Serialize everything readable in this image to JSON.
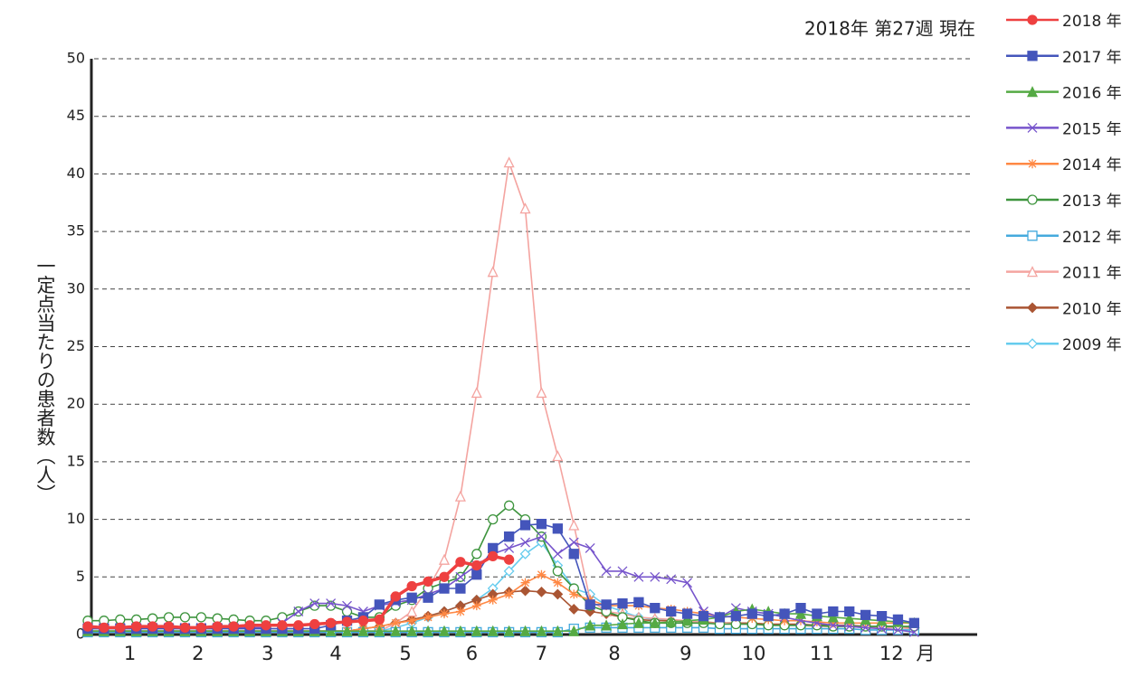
{
  "chart_data": {
    "type": "line",
    "title": "2018年 第27週 現在",
    "y_axis_label": "一定点当たりの患者数（人）",
    "x": [
      1,
      2,
      3,
      4,
      5,
      6,
      7,
      8,
      9,
      10,
      11,
      12,
      13,
      14,
      15,
      16,
      17,
      18,
      19,
      20,
      21,
      22,
      23,
      24,
      25,
      26,
      27,
      28,
      29,
      30,
      31,
      32,
      33,
      34,
      35,
      36,
      37,
      38,
      39,
      40,
      41,
      42,
      43,
      44,
      45,
      46,
      47,
      48,
      49,
      50,
      51,
      52
    ],
    "xlim": [
      1,
      56
    ],
    "xticks": [
      {
        "value": 3.6,
        "label": "1"
      },
      {
        "value": 7.8,
        "label": "2"
      },
      {
        "value": 12.1,
        "label": "3"
      },
      {
        "value": 16.3,
        "label": "4"
      },
      {
        "value": 20.6,
        "label": "5"
      },
      {
        "value": 24.7,
        "label": "6"
      },
      {
        "value": 29.0,
        "label": "7"
      },
      {
        "value": 33.5,
        "label": "8"
      },
      {
        "value": 37.9,
        "label": "9"
      },
      {
        "value": 42.1,
        "label": "10"
      },
      {
        "value": 46.3,
        "label": "11"
      },
      {
        "value": 50.6,
        "label": "12"
      },
      {
        "value": 52.7,
        "label": "月"
      }
    ],
    "ylim": [
      0,
      50
    ],
    "yticks": [
      0,
      5,
      10,
      15,
      20,
      25,
      30,
      35,
      40,
      45,
      50
    ],
    "grid": true,
    "legend": "right",
    "series": [
      {
        "name": "2018 年",
        "color": "#ee4040",
        "marker": "circle",
        "values": [
          0.7,
          0.6,
          0.6,
          0.7,
          0.7,
          0.7,
          0.6,
          0.6,
          0.7,
          0.7,
          0.8,
          0.8,
          0.8,
          0.8,
          0.9,
          1.0,
          1.1,
          1.2,
          1.3,
          3.3,
          4.2,
          4.6,
          5.0,
          6.3,
          6.0,
          6.8,
          6.5,
          null,
          null,
          null,
          null,
          null,
          null,
          null,
          null,
          null,
          null,
          null,
          null,
          null,
          null,
          null,
          null,
          null,
          null,
          null,
          null,
          null,
          null,
          null,
          null,
          null
        ]
      },
      {
        "name": "2017 年",
        "color": "#4455bb",
        "marker": "square",
        "values": [
          0.5,
          0.5,
          0.5,
          0.5,
          0.5,
          0.5,
          0.5,
          0.5,
          0.5,
          0.5,
          0.5,
          0.5,
          0.5,
          0.5,
          0.5,
          0.8,
          1.2,
          1.5,
          2.6,
          3.0,
          3.2,
          3.2,
          4.0,
          4.0,
          5.2,
          7.5,
          8.5,
          9.5,
          9.6,
          9.2,
          7.0,
          2.6,
          2.6,
          2.7,
          2.8,
          2.3,
          2.0,
          1.8,
          1.6,
          1.5,
          1.6,
          1.8,
          1.6,
          1.8,
          2.3,
          1.8,
          2.0,
          2.0,
          1.7,
          1.6,
          1.3,
          1.0
        ]
      },
      {
        "name": "2016 年",
        "color": "#55aa44",
        "marker": "triangle",
        "values": [
          0.3,
          0.3,
          0.3,
          0.3,
          0.3,
          0.3,
          0.3,
          0.3,
          0.3,
          0.3,
          0.3,
          0.3,
          0.3,
          0.3,
          0.3,
          0.3,
          0.3,
          0.3,
          0.3,
          0.3,
          0.3,
          0.3,
          0.3,
          0.3,
          0.3,
          0.3,
          0.3,
          0.3,
          0.3,
          0.3,
          0.3,
          0.8,
          0.8,
          0.9,
          1.0,
          1.0,
          1.1,
          1.2,
          1.3,
          1.5,
          2.0,
          2.2,
          2.0,
          1.8,
          1.8,
          1.6,
          1.5,
          1.4,
          1.3,
          1.2,
          1.1,
          1.0
        ]
      },
      {
        "name": "2015 年",
        "color": "#7755cc",
        "marker": "x",
        "values": [
          0.6,
          0.6,
          0.6,
          0.6,
          0.6,
          0.6,
          0.6,
          0.6,
          0.6,
          0.6,
          0.6,
          0.6,
          1.0,
          2.0,
          2.7,
          2.7,
          2.5,
          2.0,
          2.5,
          2.8,
          3.0,
          3.5,
          4.0,
          5.0,
          6.0,
          7.0,
          7.5,
          8.0,
          8.5,
          7.0,
          8.0,
          7.5,
          5.5,
          5.5,
          5.0,
          5.0,
          4.8,
          4.5,
          2.0,
          1.5,
          2.3,
          2.0,
          1.8,
          1.5,
          1.2,
          1.0,
          0.8,
          0.7,
          0.6,
          0.5,
          0.4,
          0.2
        ]
      },
      {
        "name": "2014 年",
        "color": "#ff8844",
        "marker": "star",
        "values": [
          0.3,
          0.3,
          0.3,
          0.3,
          0.3,
          0.3,
          0.3,
          0.3,
          0.3,
          0.3,
          0.3,
          0.3,
          0.3,
          0.3,
          0.3,
          0.3,
          0.3,
          0.5,
          0.7,
          1.0,
          1.2,
          1.5,
          1.8,
          2.0,
          2.5,
          3.0,
          3.5,
          4.5,
          5.2,
          4.5,
          3.5,
          3.0,
          2.5,
          2.5,
          2.5,
          2.3,
          2.2,
          2.0,
          1.8,
          1.6,
          1.5,
          1.4,
          1.3,
          1.2,
          1.2,
          1.1,
          1.0,
          1.0,
          1.0,
          1.0,
          1.0,
          1.0
        ]
      },
      {
        "name": "2013 年",
        "color": "#3d943d",
        "marker": "circle-open",
        "values": [
          1.2,
          1.2,
          1.3,
          1.3,
          1.4,
          1.5,
          1.5,
          1.5,
          1.4,
          1.3,
          1.2,
          1.2,
          1.5,
          2.0,
          2.5,
          2.5,
          2.0,
          1.5,
          1.5,
          2.5,
          3.0,
          4.0,
          4.5,
          5.0,
          7.0,
          10.0,
          11.2,
          10.0,
          8.5,
          5.5,
          4.0,
          2.5,
          2.0,
          1.5,
          1.2,
          1.0,
          1.0,
          1.0,
          1.0,
          0.9,
          0.9,
          0.9,
          0.8,
          0.8,
          0.8,
          0.8,
          0.7,
          0.7,
          0.7,
          0.7,
          0.7,
          0.7
        ]
      },
      {
        "name": "2012 年",
        "color": "#44aadd",
        "marker": "square-open",
        "values": [
          0.2,
          0.2,
          0.2,
          0.2,
          0.2,
          0.2,
          0.2,
          0.2,
          0.2,
          0.2,
          0.2,
          0.2,
          0.2,
          0.2,
          0.2,
          0.2,
          0.2,
          0.2,
          0.2,
          0.2,
          0.2,
          0.2,
          0.2,
          0.2,
          0.2,
          0.2,
          0.2,
          0.2,
          0.2,
          0.2,
          0.5,
          0.6,
          0.6,
          0.6,
          0.6,
          0.6,
          0.6,
          0.6,
          0.6,
          0.5,
          0.5,
          0.5,
          0.5,
          0.5,
          0.5,
          0.5,
          0.5,
          0.5,
          0.4,
          0.4,
          0.4,
          0.4
        ]
      },
      {
        "name": "2011 年",
        "color": "#f4a4a0",
        "marker": "triangle-open",
        "values": [
          0.3,
          0.3,
          0.3,
          0.3,
          0.3,
          0.3,
          0.3,
          0.3,
          0.3,
          0.3,
          0.3,
          0.3,
          0.3,
          0.3,
          0.3,
          0.3,
          0.3,
          0.3,
          0.3,
          1.0,
          2.0,
          4.0,
          6.5,
          12.0,
          21.0,
          31.5,
          41.0,
          37.0,
          21.0,
          15.5,
          9.5,
          3.0,
          2.0,
          1.8,
          1.5,
          1.4,
          1.3,
          1.2,
          1.0,
          1.0,
          0.9,
          0.9,
          0.8,
          0.8,
          0.8,
          0.7,
          0.7,
          0.7,
          0.6,
          0.6,
          0.6,
          0.5
        ]
      },
      {
        "name": "2010 年",
        "color": "#aa5533",
        "marker": "diamond",
        "values": [
          0.3,
          0.3,
          0.3,
          0.3,
          0.3,
          0.3,
          0.3,
          0.3,
          0.3,
          0.3,
          0.3,
          0.3,
          0.3,
          0.3,
          0.3,
          0.3,
          0.3,
          0.5,
          0.7,
          1.0,
          1.3,
          1.6,
          2.0,
          2.5,
          3.0,
          3.5,
          3.7,
          3.8,
          3.7,
          3.5,
          2.2,
          2.0,
          1.8,
          1.5,
          1.3,
          1.2,
          1.2,
          1.1,
          1.1,
          1.0,
          1.0,
          1.0,
          0.9,
          0.9,
          0.9,
          0.8,
          0.8,
          0.8,
          0.7,
          0.7,
          0.7,
          0.6
        ]
      },
      {
        "name": "2009 年",
        "color": "#66ccee",
        "marker": "diamond-open",
        "values": [
          0.3,
          0.3,
          0.3,
          0.3,
          0.3,
          0.3,
          0.3,
          0.3,
          0.3,
          0.3,
          0.3,
          0.3,
          0.3,
          0.3,
          0.3,
          0.3,
          0.3,
          0.3,
          0.3,
          0.6,
          1.0,
          1.5,
          2.0,
          2.5,
          3.0,
          4.0,
          5.5,
          7.0,
          8.0,
          6.0,
          4.0,
          3.5,
          2.5,
          2.0,
          1.5,
          1.3,
          1.2,
          1.1,
          1.0,
          1.0,
          0.9,
          0.9,
          0.8,
          0.8,
          0.8,
          0.7,
          0.7,
          0.7,
          0.6,
          0.6,
          0.6,
          0.5
        ]
      }
    ]
  }
}
